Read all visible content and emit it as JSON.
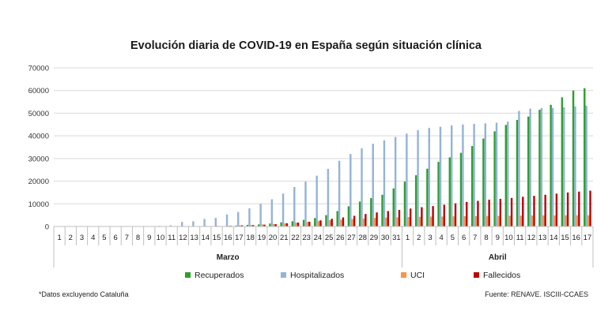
{
  "title": "Evolución diaria de COVID-19 en España según situación clínica",
  "footnote": "*Datos excluyendo Cataluña",
  "source": "Fuente: RENAVE. ISCIII-CCAES",
  "chart_data": {
    "type": "bar",
    "title": "Evolución diaria de COVID-19 en España según situación clínica",
    "ylim": [
      0,
      70000
    ],
    "yticks": [
      "0",
      "10000",
      "20000",
      "30000",
      "40000",
      "50000",
      "60000",
      "70000"
    ],
    "grid": true,
    "legend_position": "bottom",
    "groups": [
      {
        "label": "Marzo",
        "days": [
          "1",
          "2",
          "3",
          "4",
          "5",
          "6",
          "7",
          "8",
          "9",
          "10",
          "11",
          "12",
          "13",
          "14",
          "15",
          "16",
          "17",
          "18",
          "19",
          "20",
          "21",
          "22",
          "23",
          "24",
          "25",
          "26",
          "27",
          "28",
          "29",
          "30",
          "31"
        ]
      },
      {
        "label": "Abril",
        "days": [
          "1",
          "2",
          "3",
          "4",
          "5",
          "6",
          "7",
          "8",
          "9",
          "10",
          "11",
          "12",
          "13",
          "14",
          "15",
          "16",
          "17"
        ]
      }
    ],
    "series": [
      {
        "name": "Recuperados",
        "color": "#2ca02c",
        "values": [
          0,
          0,
          0,
          0,
          0,
          0,
          0,
          0,
          0,
          0,
          0,
          0,
          0,
          0,
          0,
          200,
          400,
          700,
          900,
          1300,
          1800,
          2300,
          2900,
          3700,
          5000,
          6800,
          8900,
          11000,
          12500,
          14000,
          16800,
          19800,
          22600,
          25500,
          28500,
          30500,
          32500,
          35500,
          38800,
          42000,
          44800,
          47000,
          48500,
          51500,
          53700,
          57000,
          60000,
          61000
        ]
      },
      {
        "name": "Hospitalizados",
        "color": "#95b3d7",
        "values": [
          0,
          0,
          0,
          0,
          0,
          0,
          0,
          0,
          0,
          300,
          500,
          2000,
          2300,
          3300,
          3800,
          5300,
          6400,
          8000,
          10000,
          12000,
          14500,
          17400,
          19800,
          22400,
          25400,
          29000,
          32000,
          34500,
          36500,
          38000,
          39500,
          41000,
          42500,
          43500,
          44000,
          44600,
          45000,
          45300,
          45500,
          45800,
          46300,
          51000,
          52000,
          52300,
          52300,
          52600,
          53000,
          53300
        ]
      },
      {
        "name": "UCI",
        "color": "#f79646",
        "values": [
          0,
          0,
          0,
          0,
          0,
          0,
          0,
          0,
          0,
          0,
          0,
          100,
          150,
          250,
          300,
          350,
          500,
          700,
          900,
          1100,
          1400,
          1700,
          2000,
          2400,
          2800,
          3000,
          3300,
          3500,
          3800,
          3900,
          4000,
          4150,
          4250,
          4350,
          4400,
          4450,
          4500,
          4550,
          4600,
          4650,
          4700,
          4750,
          4800,
          4850,
          4850,
          4900,
          4900,
          4950
        ]
      },
      {
        "name": "Fallecidos",
        "color": "#c00000",
        "values": [
          0,
          0,
          0,
          0,
          0,
          0,
          0,
          0,
          0,
          0,
          0,
          0,
          0,
          0,
          0,
          300,
          500,
          600,
          800,
          1000,
          1400,
          1700,
          2100,
          2700,
          3400,
          4000,
          4700,
          5500,
          6200,
          6800,
          7300,
          7900,
          8500,
          9000,
          9600,
          10200,
          10800,
          11300,
          11800,
          12200,
          12600,
          13100,
          13500,
          14000,
          14500,
          15000,
          15400,
          15800
        ]
      }
    ]
  }
}
